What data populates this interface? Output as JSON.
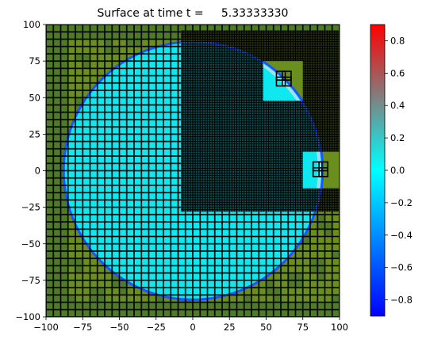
{
  "chart_data": {
    "type": "heatmap",
    "title": "Surface at time t =     5.33333330",
    "xlabel": "",
    "ylabel": "",
    "xlim": [
      -100,
      100
    ],
    "ylim": [
      -100,
      100
    ],
    "xticks": [
      -100,
      -75,
      -50,
      -25,
      0,
      25,
      50,
      75,
      100
    ],
    "yticks": [
      -100,
      -75,
      -50,
      -25,
      0,
      25,
      50,
      75,
      100
    ],
    "grid": false,
    "field": {
      "description_values": "surface elevation on adaptive mesh",
      "circle_center": [
        0,
        0
      ],
      "circle_radius": 88,
      "inside_value": 0.05,
      "wave_front_value": -0.6,
      "outside_value": "land (green)"
    },
    "refined_region": {
      "x": [
        -8,
        100
      ],
      "y": [
        -28,
        96
      ]
    },
    "mesh_cell_size": {
      "coarse": 5,
      "fine": 1.67
    },
    "gauge_patches": [
      {
        "x": [
          48,
          75
        ],
        "y": [
          48,
          75
        ],
        "boxes": [
          [
            57,
            58,
            6,
            6
          ],
          [
            61,
            58,
            6,
            6
          ],
          [
            57,
            62,
            6,
            6
          ],
          [
            61,
            62,
            6,
            6
          ]
        ]
      },
      {
        "x": [
          75,
          100
        ],
        "y": [
          -12,
          13
        ],
        "boxes": [
          [
            82,
            -4,
            6,
            6
          ],
          [
            86,
            -4,
            6,
            6
          ],
          [
            82,
            0,
            6,
            6
          ],
          [
            86,
            0,
            6,
            6
          ]
        ]
      }
    ],
    "colorbar": {
      "vmin": -0.9,
      "vmax": 0.9,
      "ticks": [
        -0.8,
        -0.6,
        -0.4,
        -0.2,
        0.0,
        0.2,
        0.4,
        0.6,
        0.8
      ],
      "tick_labels": [
        "−0.8",
        "−0.6",
        "−0.4",
        "−0.2",
        "0.0",
        "0.2",
        "0.4",
        "0.6",
        "0.8"
      ],
      "colors": [
        "#0000ff",
        "#0080ff",
        "#00ffff",
        "#808080",
        "#ff0000"
      ]
    },
    "colors": {
      "land": "#6b8f1e",
      "land_alt": "#4f7a2a",
      "water": "#10e8f0",
      "wave_front": "#1a55ff",
      "mesh_line": "#000000"
    }
  }
}
